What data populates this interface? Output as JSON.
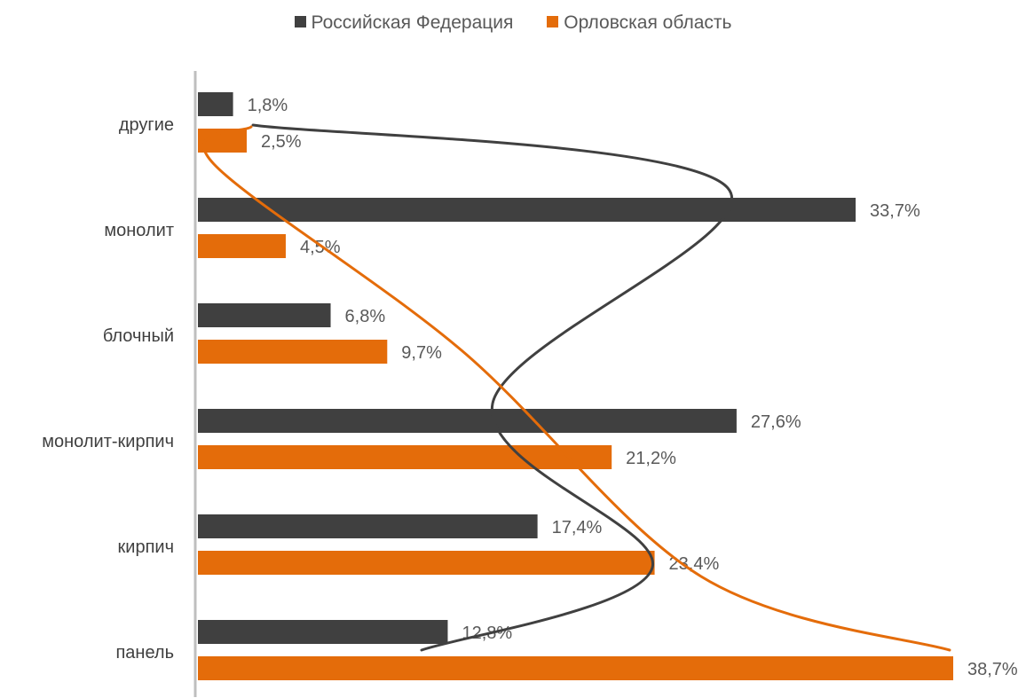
{
  "chart_data": {
    "type": "bar",
    "orientation": "horizontal",
    "categories": [
      "другие",
      "монолит",
      "блочный",
      "монолит-кирпич",
      "кирпич",
      "панель"
    ],
    "series": [
      {
        "name": "Российская Федерация",
        "color": "#404040",
        "values": [
          1.8,
          33.7,
          6.8,
          27.6,
          17.4,
          12.8
        ],
        "labels": [
          "1,8%",
          "33,7%",
          "6,8%",
          "27,6%",
          "17,4%",
          "12,8%"
        ]
      },
      {
        "name": "Орловская область",
        "color": "#E46C0A",
        "values": [
          2.5,
          4.5,
          9.7,
          21.2,
          23.4,
          38.7
        ],
        "labels": [
          "2,5%",
          "4,5%",
          "9,7%",
          "21,2%",
          "23,4%",
          "38,7%"
        ]
      }
    ],
    "xlim": [
      0,
      38.7
    ],
    "legend_position": "top",
    "grid": false,
    "annotations": [
      "hand-drawn curves connecting the series bar ends"
    ]
  }
}
